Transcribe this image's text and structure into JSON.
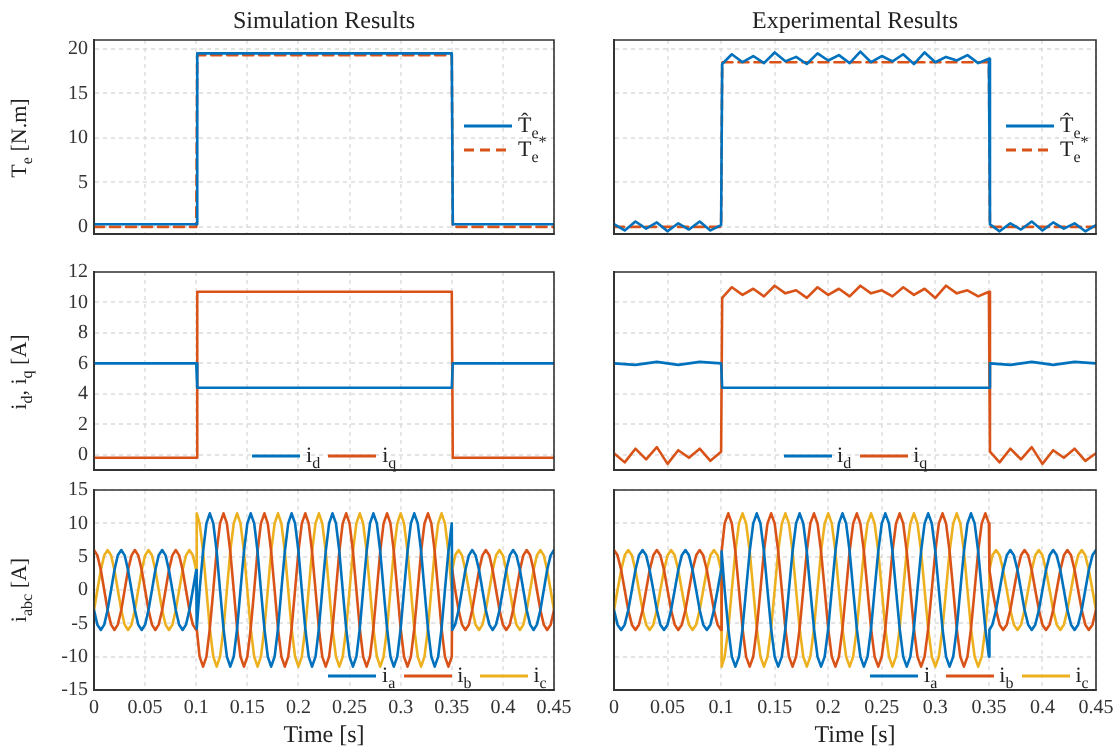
{
  "chart_data": [
    {
      "type": "line",
      "title": "Simulation Results",
      "ylabel": "T$_{e}$ [N.m]",
      "xlim": [
        0,
        0.45
      ],
      "xticks": [
        0,
        0.05,
        0.1,
        0.15,
        0.2,
        0.25,
        0.3,
        0.35,
        0.4,
        0.45
      ],
      "ylim": [
        -0.8,
        21
      ],
      "yticks": [
        0,
        5,
        10,
        15,
        20
      ],
      "grid": true,
      "legend": "right",
      "tick_labels": "y",
      "series": [
        {
          "name": "T̂$_{e}$",
          "color": "#0072bd",
          "x": [
            0,
            0.1,
            0.101,
            0.35,
            0.351,
            0.45
          ],
          "values": [
            0.3,
            0.3,
            19.5,
            19.5,
            0.3,
            0.3
          ]
        },
        {
          "name": "T$_{e}$$^{*}$",
          "color": "#d95319",
          "line_style": "dashed",
          "x": [
            0,
            0.1,
            0.101,
            0.35,
            0.351,
            0.45
          ],
          "values": [
            0,
            0,
            19.3,
            19.3,
            0,
            0
          ]
        }
      ]
    },
    {
      "type": "line",
      "title": "Experimental Results",
      "xlim": [
        0,
        0.45
      ],
      "xticks": [
        0,
        0.05,
        0.1,
        0.15,
        0.2,
        0.25,
        0.3,
        0.35,
        0.4,
        0.45
      ],
      "ylim": [
        -0.8,
        21
      ],
      "yticks": [
        0,
        5,
        10,
        15,
        20
      ],
      "grid": true,
      "legend": "right",
      "tick_labels": false,
      "series": [
        {
          "name": "T̂$_{e}$",
          "color": "#0072bd",
          "x": [
            0,
            0.01,
            0.02,
            0.03,
            0.04,
            0.05,
            0.06,
            0.07,
            0.08,
            0.09,
            0.1,
            0.101,
            0.11,
            0.12,
            0.13,
            0.14,
            0.15,
            0.16,
            0.17,
            0.18,
            0.19,
            0.2,
            0.21,
            0.22,
            0.23,
            0.24,
            0.25,
            0.26,
            0.27,
            0.28,
            0.29,
            0.3,
            0.31,
            0.32,
            0.33,
            0.34,
            0.35,
            0.351,
            0.36,
            0.37,
            0.38,
            0.39,
            0.4,
            0.41,
            0.42,
            0.43,
            0.44,
            0.45
          ],
          "values": [
            0.3,
            -0.4,
            0.6,
            -0.2,
            0.5,
            -0.5,
            0.4,
            -0.3,
            0.6,
            -0.4,
            0.2,
            18.3,
            19.4,
            18.5,
            19.2,
            18.4,
            19.6,
            18.6,
            19.1,
            18.3,
            19.5,
            18.7,
            19.3,
            18.4,
            19.7,
            18.5,
            19.2,
            18.6,
            19.4,
            18.3,
            19.6,
            18.5,
            19.1,
            18.7,
            19.3,
            18.4,
            18.9,
            0.3,
            -0.5,
            0.4,
            -0.3,
            0.6,
            -0.4,
            0.5,
            -0.2,
            0.4,
            -0.5,
            0.2
          ]
        },
        {
          "name": "T$_{e}$$^{*}$",
          "color": "#d95319",
          "line_style": "dashed",
          "x": [
            0,
            0.1,
            0.101,
            0.35,
            0.351,
            0.45
          ],
          "values": [
            0,
            0,
            18.5,
            18.5,
            0,
            0
          ]
        }
      ]
    },
    {
      "type": "line",
      "ylabel": "i$_{d}$, i$_{q}$ [A]",
      "xlim": [
        0,
        0.45
      ],
      "xticks": [
        0,
        0.05,
        0.1,
        0.15,
        0.2,
        0.25,
        0.3,
        0.35,
        0.4,
        0.45
      ],
      "ylim": [
        -1,
        12
      ],
      "yticks": [
        0,
        2,
        4,
        6,
        8,
        10,
        12
      ],
      "grid": true,
      "legend": "bottom",
      "tick_labels": "y",
      "series": [
        {
          "name": "i$_{d}$",
          "color": "#0072bd",
          "x": [
            0,
            0.1,
            0.101,
            0.35,
            0.351,
            0.45
          ],
          "values": [
            6,
            6,
            4.4,
            4.4,
            6,
            6
          ]
        },
        {
          "name": "i$_{q}$",
          "color": "#d95319",
          "x": [
            0,
            0.1,
            0.101,
            0.35,
            0.351,
            0.45
          ],
          "values": [
            -0.2,
            -0.2,
            10.7,
            10.7,
            -0.2,
            -0.2
          ]
        }
      ]
    },
    {
      "type": "line",
      "xlim": [
        0,
        0.45
      ],
      "xticks": [
        0,
        0.05,
        0.1,
        0.15,
        0.2,
        0.25,
        0.3,
        0.35,
        0.4,
        0.45
      ],
      "ylim": [
        -1,
        12
      ],
      "yticks": [
        0,
        2,
        4,
        6,
        8,
        10,
        12
      ],
      "grid": true,
      "legend": "bottom",
      "tick_labels": false,
      "series": [
        {
          "name": "i$_{d}$",
          "color": "#0072bd",
          "x": [
            0,
            0.02,
            0.04,
            0.06,
            0.08,
            0.1,
            0.101,
            0.35,
            0.351,
            0.37,
            0.39,
            0.41,
            0.43,
            0.45
          ],
          "values": [
            6,
            5.9,
            6.1,
            5.9,
            6.1,
            6,
            4.4,
            4.4,
            6,
            5.9,
            6.1,
            5.9,
            6.1,
            6
          ]
        },
        {
          "name": "i$_{q}$",
          "color": "#d95319",
          "x": [
            0,
            0.01,
            0.02,
            0.03,
            0.04,
            0.05,
            0.06,
            0.07,
            0.08,
            0.09,
            0.1,
            0.101,
            0.11,
            0.12,
            0.13,
            0.14,
            0.15,
            0.16,
            0.17,
            0.18,
            0.19,
            0.2,
            0.21,
            0.22,
            0.23,
            0.24,
            0.25,
            0.26,
            0.27,
            0.28,
            0.29,
            0.3,
            0.31,
            0.32,
            0.33,
            0.34,
            0.35,
            0.351,
            0.36,
            0.37,
            0.38,
            0.39,
            0.4,
            0.41,
            0.42,
            0.43,
            0.44,
            0.45
          ],
          "values": [
            0.1,
            -0.5,
            0.4,
            -0.3,
            0.5,
            -0.6,
            0.3,
            -0.2,
            0.4,
            -0.4,
            0.2,
            10.3,
            11,
            10.5,
            10.9,
            10.4,
            11.1,
            10.6,
            10.8,
            10.3,
            11,
            10.5,
            10.9,
            10.4,
            11.1,
            10.6,
            10.8,
            10.4,
            11,
            10.5,
            10.9,
            10.3,
            11.1,
            10.6,
            10.8,
            10.4,
            10.7,
            0.2,
            -0.5,
            0.4,
            -0.3,
            0.5,
            -0.6,
            0.3,
            -0.2,
            0.4,
            -0.4,
            0.1
          ]
        }
      ]
    },
    {
      "type": "line",
      "ylabel": "i$_{abc}$ [A]",
      "xlabel": "Time [s]",
      "xlim": [
        0,
        0.45
      ],
      "xticks": [
        0,
        0.05,
        0.1,
        0.15,
        0.2,
        0.25,
        0.3,
        0.35,
        0.4,
        0.45
      ],
      "ylim": [
        -15,
        15
      ],
      "yticks": [
        -15,
        -10,
        -5,
        0,
        5,
        10,
        15
      ],
      "grid": true,
      "legend": "bottom right",
      "x": [
        0,
        0.0033,
        0.0067,
        0.01,
        0.0133,
        0.0167,
        0.02,
        0.0233,
        0.0267,
        0.03,
        0.0333,
        0.0367,
        0.04,
        0.0433,
        0.0467,
        0.05,
        0.0533,
        0.0567,
        0.06,
        0.0633,
        0.0667,
        0.07,
        0.0733,
        0.0767,
        0.08,
        0.0833,
        0.0867,
        0.09,
        0.0933,
        0.0967,
        0.1,
        0.1005,
        0.1033,
        0.1067,
        0.11,
        0.1133,
        0.1167,
        0.12,
        0.1233,
        0.1267,
        0.13,
        0.1333,
        0.1367,
        0.14,
        0.1433,
        0.1467,
        0.15,
        0.1533,
        0.1567,
        0.16,
        0.1633,
        0.1667,
        0.17,
        0.1733,
        0.1767,
        0.18,
        0.1833,
        0.1867,
        0.19,
        0.1933,
        0.1967,
        0.2,
        0.2033,
        0.2067,
        0.21,
        0.2133,
        0.2167,
        0.22,
        0.2233,
        0.2267,
        0.23,
        0.2333,
        0.2367,
        0.24,
        0.2433,
        0.2467,
        0.25,
        0.2533,
        0.2567,
        0.26,
        0.2633,
        0.2667,
        0.27,
        0.2733,
        0.2767,
        0.28,
        0.2833,
        0.2867,
        0.29,
        0.2933,
        0.2967,
        0.3,
        0.3033,
        0.3067,
        0.31,
        0.3133,
        0.3167,
        0.32,
        0.3233,
        0.3267,
        0.33,
        0.3333,
        0.3367,
        0.34,
        0.3433,
        0.3467,
        0.35,
        0.3505,
        0.3533,
        0.3567,
        0.36,
        0.3633,
        0.3667,
        0.37,
        0.3733,
        0.3767,
        0.38,
        0.3833,
        0.3867,
        0.39,
        0.3933,
        0.3967,
        0.4,
        0.4033,
        0.4067,
        0.41,
        0.4133,
        0.4167,
        0.42,
        0.4233,
        0.4267,
        0.43,
        0.4333,
        0.4367,
        0.44,
        0.4433,
        0.4467,
        0.45
      ],
      "series": [
        {
          "name": "i$_{a}$",
          "color": "#0072bd",
          "values": [
            -3,
            -5.2,
            -6,
            -5.2,
            -3,
            0,
            3,
            5.2,
            6,
            5.2,
            3,
            0,
            -3,
            -5.2,
            -6,
            -5.2,
            -3,
            0,
            3,
            5.2,
            6,
            5.2,
            3,
            0,
            -3,
            -5.2,
            -6,
            -5.2,
            -3,
            0,
            3,
            -5.8,
            0,
            5.8,
            10,
            11.5,
            10,
            5.8,
            0,
            -5.8,
            -10,
            -11.5,
            -10,
            -5.8,
            0,
            5.8,
            10,
            11.5,
            10,
            5.8,
            0,
            -5.8,
            -10,
            -11.5,
            -10,
            -5.8,
            0,
            5.8,
            10,
            11.5,
            10,
            5.8,
            0,
            -5.8,
            -10,
            -11.5,
            -10,
            -5.8,
            0,
            5.8,
            10,
            11.5,
            10,
            5.8,
            0,
            -5.8,
            -10,
            -11.5,
            -10,
            -5.8,
            0,
            5.8,
            10,
            11.5,
            10,
            5.8,
            0,
            -5.8,
            -10,
            -11.5,
            -10,
            -5.8,
            0,
            5.8,
            10,
            11.5,
            10,
            5.8,
            0,
            -5.8,
            -10,
            -11.5,
            -10,
            -5.8,
            0,
            5.8,
            10,
            -6,
            -5.2,
            -3,
            0,
            3,
            5.2,
            6,
            5.2,
            3,
            0,
            -3,
            -5.2,
            -6,
            -5.2,
            -3,
            0,
            3,
            5.2,
            6,
            5.2,
            3,
            0,
            -3,
            -5.2,
            -6,
            -5.2,
            -3,
            0,
            3,
            5.2,
            6
          ]
        },
        {
          "name": "i$_{b}$",
          "color": "#d95319",
          "values": [
            6,
            5.2,
            3,
            0,
            -3,
            -5.2,
            -6,
            -5.2,
            -3,
            0,
            3,
            5.2,
            6,
            5.2,
            3,
            0,
            -3,
            -5.2,
            -6,
            -5.2,
            -3,
            0,
            3,
            5.2,
            6,
            5.2,
            3,
            0,
            -3,
            -5.2,
            -6,
            -5.8,
            -10,
            -11.5,
            -10,
            -5.8,
            0,
            5.8,
            10,
            11.5,
            10,
            5.8,
            0,
            -5.8,
            -10,
            -11.5,
            -10,
            -5.8,
            0,
            5.8,
            10,
            11.5,
            10,
            5.8,
            0,
            -5.8,
            -10,
            -11.5,
            -10,
            -5.8,
            0,
            5.8,
            10,
            11.5,
            10,
            5.8,
            0,
            -5.8,
            -10,
            -11.5,
            -10,
            -5.8,
            0,
            5.8,
            10,
            11.5,
            10,
            5.8,
            0,
            -5.8,
            -10,
            -11.5,
            -10,
            -5.8,
            0,
            5.8,
            10,
            11.5,
            10,
            5.8,
            0,
            -5.8,
            -10,
            -11.5,
            -10,
            -5.8,
            0,
            5.8,
            10,
            11.5,
            10,
            5.8,
            0,
            -5.8,
            -10,
            -11.5,
            -10,
            3,
            0,
            -3,
            -5.2,
            -6,
            -5.2,
            -3,
            0,
            3,
            5.2,
            6,
            5.2,
            3,
            0,
            -3,
            -5.2,
            -6,
            -5.2,
            -3,
            0,
            3,
            5.2,
            6,
            5.2,
            3,
            0,
            -3,
            -5.2,
            -6,
            -5.2,
            -3
          ]
        },
        {
          "name": "i$_{c}$",
          "color": "#edb120",
          "values": [
            -3,
            0,
            3,
            5.2,
            6,
            5.2,
            3,
            0,
            -3,
            -5.2,
            -6,
            -5.2,
            -3,
            0,
            3,
            5.2,
            6,
            5.2,
            3,
            0,
            -3,
            -5.2,
            -6,
            -5.2,
            -3,
            0,
            3,
            5.2,
            6,
            5.2,
            3,
            11.5,
            10,
            5.8,
            0,
            -5.8,
            -10,
            -11.5,
            -10,
            -5.8,
            0,
            5.8,
            10,
            11.5,
            10,
            5.8,
            0,
            -5.8,
            -10,
            -11.5,
            -10,
            -5.8,
            0,
            5.8,
            10,
            11.5,
            10,
            5.8,
            0,
            -5.8,
            -10,
            -11.5,
            -10,
            -5.8,
            0,
            5.8,
            10,
            11.5,
            10,
            5.8,
            0,
            -5.8,
            -10,
            -11.5,
            -10,
            -5.8,
            0,
            5.8,
            10,
            11.5,
            10,
            5.8,
            0,
            -5.8,
            -10,
            -11.5,
            -10,
            -5.8,
            0,
            5.8,
            10,
            11.5,
            10,
            5.8,
            0,
            -5.8,
            -10,
            -11.5,
            -10,
            -5.8,
            0,
            5.8,
            10,
            11.5,
            10,
            5.8,
            0,
            3,
            5.2,
            6,
            5.2,
            3,
            0,
            -3,
            -5.2,
            -6,
            -5.2,
            -3,
            0,
            3,
            5.2,
            6,
            5.2,
            3,
            0,
            -3,
            -5.2,
            -6,
            -5.2,
            -3,
            0,
            3,
            5.2,
            6,
            5.2,
            3,
            0,
            -3
          ]
        }
      ]
    },
    {
      "type": "line",
      "xlabel": "Time [s]",
      "xlim": [
        0,
        0.45
      ],
      "xticks": [
        0,
        0.05,
        0.1,
        0.15,
        0.2,
        0.25,
        0.3,
        0.35,
        0.4,
        0.45
      ],
      "ylim": [
        -15,
        15
      ],
      "yticks": [
        -15,
        -10,
        -5,
        0,
        5,
        10,
        15
      ],
      "grid": true,
      "legend": "bottom right",
      "tick_labels": "x",
      "x": [
        0,
        0.0033,
        0.0067,
        0.01,
        0.0133,
        0.0167,
        0.02,
        0.0233,
        0.0267,
        0.03,
        0.0333,
        0.0367,
        0.04,
        0.0433,
        0.0467,
        0.05,
        0.0533,
        0.0567,
        0.06,
        0.0633,
        0.0667,
        0.07,
        0.0733,
        0.0767,
        0.08,
        0.0833,
        0.0867,
        0.09,
        0.0933,
        0.0967,
        0.1,
        0.1005,
        0.1033,
        0.1067,
        0.11,
        0.1133,
        0.1167,
        0.12,
        0.1233,
        0.1267,
        0.13,
        0.1333,
        0.1367,
        0.14,
        0.1433,
        0.1467,
        0.15,
        0.1533,
        0.1567,
        0.16,
        0.1633,
        0.1667,
        0.17,
        0.1733,
        0.1767,
        0.18,
        0.1833,
        0.1867,
        0.19,
        0.1933,
        0.1967,
        0.2,
        0.2033,
        0.2067,
        0.21,
        0.2133,
        0.2167,
        0.22,
        0.2233,
        0.2267,
        0.23,
        0.2333,
        0.2367,
        0.24,
        0.2433,
        0.2467,
        0.25,
        0.2533,
        0.2567,
        0.26,
        0.2633,
        0.2667,
        0.27,
        0.2733,
        0.2767,
        0.28,
        0.2833,
        0.2867,
        0.29,
        0.2933,
        0.2967,
        0.3,
        0.3033,
        0.3067,
        0.31,
        0.3133,
        0.3167,
        0.32,
        0.3233,
        0.3267,
        0.33,
        0.3333,
        0.3367,
        0.34,
        0.3433,
        0.3467,
        0.35,
        0.3505,
        0.3533,
        0.3567,
        0.36,
        0.3633,
        0.3667,
        0.37,
        0.3733,
        0.3767,
        0.38,
        0.3833,
        0.3867,
        0.39,
        0.3933,
        0.3967,
        0.4,
        0.4033,
        0.4067,
        0.41,
        0.4133,
        0.4167,
        0.42,
        0.4233,
        0.4267,
        0.43,
        0.4333,
        0.4367,
        0.44,
        0.4433,
        0.4467,
        0.45
      ],
      "series": [
        {
          "name": "i$_{a}$",
          "color": "#0072bd",
          "values": [
            -3,
            -5.2,
            -6,
            -5.2,
            -3,
            0,
            3,
            5.2,
            6,
            5.2,
            3,
            0,
            -3,
            -5.2,
            -6,
            -5.2,
            -3,
            0,
            3,
            5.2,
            6,
            5.2,
            3,
            0,
            -3,
            -5.2,
            -6,
            -5.2,
            -3,
            0,
            3,
            5.8,
            0,
            -5.8,
            -10,
            -11.5,
            -10,
            -5.8,
            0,
            5.8,
            10,
            11.5,
            10,
            5.8,
            0,
            -5.8,
            -10,
            -11.5,
            -10,
            -5.8,
            0,
            5.8,
            10,
            11.5,
            10,
            5.8,
            0,
            -5.8,
            -10,
            -11.5,
            -10,
            -5.8,
            0,
            5.8,
            10,
            11.5,
            10,
            5.8,
            0,
            -5.8,
            -10,
            -11.5,
            -10,
            -5.8,
            0,
            5.8,
            10,
            11.5,
            10,
            5.8,
            0,
            -5.8,
            -10,
            -11.5,
            -10,
            -5.8,
            0,
            5.8,
            10,
            11.5,
            10,
            5.8,
            0,
            -5.8,
            -10,
            -11.5,
            -10,
            -5.8,
            0,
            5.8,
            10,
            11.5,
            10,
            5.8,
            0,
            -5.8,
            -10,
            -6,
            -5.2,
            -3,
            0,
            3,
            5.2,
            6,
            5.2,
            3,
            0,
            -3,
            -5.2,
            -6,
            -5.2,
            -3,
            0,
            3,
            5.2,
            6,
            5.2,
            3,
            0,
            -3,
            -5.2,
            -6,
            -5.2,
            -3,
            0,
            3,
            5.2,
            6
          ]
        },
        {
          "name": "i$_{b}$",
          "color": "#d95319",
          "values": [
            6,
            5.2,
            3,
            0,
            -3,
            -5.2,
            -6,
            -5.2,
            -3,
            0,
            3,
            5.2,
            6,
            5.2,
            3,
            0,
            -3,
            -5.2,
            -6,
            -5.2,
            -3,
            0,
            3,
            5.2,
            6,
            5.2,
            3,
            0,
            -3,
            -5.2,
            -6,
            5.8,
            10,
            11.5,
            10,
            5.8,
            0,
            -5.8,
            -10,
            -11.5,
            -10,
            -5.8,
            0,
            5.8,
            10,
            11.5,
            10,
            5.8,
            0,
            -5.8,
            -10,
            -11.5,
            -10,
            -5.8,
            0,
            5.8,
            10,
            11.5,
            10,
            5.8,
            0,
            -5.8,
            -10,
            -11.5,
            -10,
            -5.8,
            0,
            5.8,
            10,
            11.5,
            10,
            5.8,
            0,
            -5.8,
            -10,
            -11.5,
            -10,
            -5.8,
            0,
            5.8,
            10,
            11.5,
            10,
            5.8,
            0,
            -5.8,
            -10,
            -11.5,
            -10,
            -5.8,
            0,
            5.8,
            10,
            11.5,
            10,
            5.8,
            0,
            -5.8,
            -10,
            -11.5,
            -10,
            -5.8,
            0,
            5.8,
            10,
            11.5,
            10,
            3,
            0,
            -3,
            -5.2,
            -6,
            -5.2,
            -3,
            0,
            3,
            5.2,
            6,
            5.2,
            3,
            0,
            -3,
            -5.2,
            -6,
            -5.2,
            -3,
            0,
            3,
            5.2,
            6,
            5.2,
            3,
            0,
            -3,
            -5.2,
            -6,
            -5.2,
            -3
          ]
        },
        {
          "name": "i$_{c}$",
          "color": "#edb120",
          "values": [
            -3,
            0,
            3,
            5.2,
            6,
            5.2,
            3,
            0,
            -3,
            -5.2,
            -6,
            -5.2,
            -3,
            0,
            3,
            5.2,
            6,
            5.2,
            3,
            0,
            -3,
            -5.2,
            -6,
            -5.2,
            -3,
            0,
            3,
            5.2,
            6,
            5.2,
            3,
            -11.5,
            -10,
            -5.8,
            0,
            5.8,
            10,
            11.5,
            10,
            5.8,
            0,
            -5.8,
            -10,
            -11.5,
            -10,
            -5.8,
            0,
            5.8,
            10,
            11.5,
            10,
            5.8,
            0,
            -5.8,
            -10,
            -11.5,
            -10,
            -5.8,
            0,
            5.8,
            10,
            11.5,
            10,
            5.8,
            0,
            -5.8,
            -10,
            -11.5,
            -10,
            -5.8,
            0,
            5.8,
            10,
            11.5,
            10,
            5.8,
            0,
            -5.8,
            -10,
            -11.5,
            -10,
            -5.8,
            0,
            5.8,
            10,
            11.5,
            10,
            5.8,
            0,
            -5.8,
            -10,
            -11.5,
            -10,
            -5.8,
            0,
            5.8,
            10,
            11.5,
            10,
            5.8,
            0,
            -5.8,
            -10,
            -11.5,
            -10,
            -5.8,
            0,
            3,
            5.2,
            6,
            5.2,
            3,
            0,
            -3,
            -5.2,
            -6,
            -5.2,
            -3,
            0,
            3,
            5.2,
            6,
            5.2,
            3,
            0,
            -3,
            -5.2,
            -6,
            -5.2,
            -3,
            0,
            3,
            5.2,
            6,
            5.2,
            3,
            0,
            -3
          ]
        }
      ]
    }
  ]
}
